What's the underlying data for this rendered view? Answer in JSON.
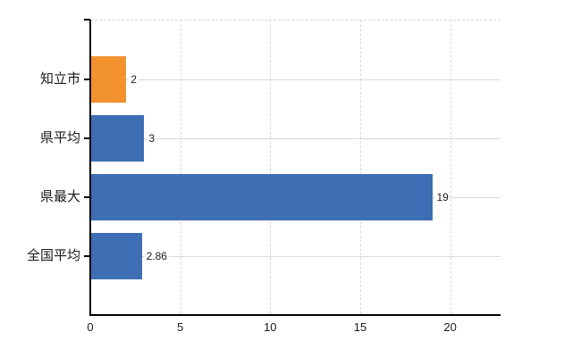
{
  "chart_data": {
    "type": "bar",
    "orientation": "horizontal",
    "title": "",
    "xlabel": "",
    "ylabel": "",
    "categories": [
      "知立市",
      "県平均",
      "県最大",
      "全国平均"
    ],
    "values": [
      2,
      3,
      19,
      2.86
    ],
    "value_labels": [
      "2",
      "3",
      "19",
      "2.86"
    ],
    "bar_colors": [
      "#f2922f",
      "#3e6eb4",
      "#3e6eb4",
      "#3e6eb4"
    ],
    "x_ticks": [
      0,
      5,
      10,
      15,
      20
    ],
    "x_tick_labels": [
      "0",
      "5",
      "10",
      "15",
      "20"
    ],
    "xlim": [
      0,
      22.8
    ],
    "grid": true,
    "legend": false
  },
  "colors": {
    "background": "#ffffff",
    "axis": "#000000",
    "gridline": "#d8d8d8",
    "text": "#1a1a1a",
    "bar_blue": "#3e6eb4",
    "bar_orange": "#f2922f"
  }
}
